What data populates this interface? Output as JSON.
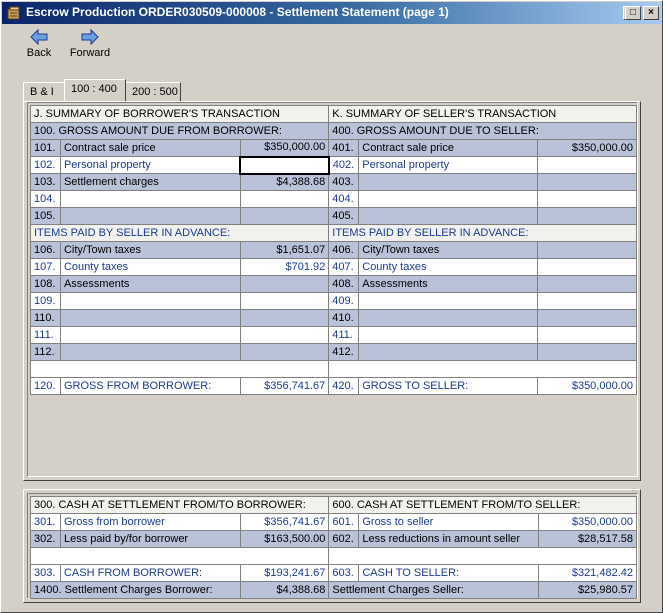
{
  "window": {
    "title": "Escrow Production ORDER030509-000008 - Settlement Statement (page 1)",
    "controls": {
      "minimize": "_",
      "maximize": "□",
      "close": "×"
    }
  },
  "toolbar": {
    "back_label": "Back",
    "forward_label": "Forward",
    "back_icon": "arrow-left-icon",
    "forward_icon": "arrow-right-icon"
  },
  "tabs": [
    {
      "label": "B & I",
      "active": false
    },
    {
      "label": "100 : 400",
      "active": true
    },
    {
      "label": "200 : 500",
      "active": false
    }
  ],
  "borrower": {
    "header": "J.   SUMMARY OF BORROWER'S TRANSACTION",
    "gross_header": "100.   GROSS AMOUNT DUE FROM BORROWER:",
    "rows_a": [
      {
        "num": "101.",
        "label": "Contract sale price",
        "amount": "$350,000.00"
      },
      {
        "num": "102.",
        "label": "Personal property",
        "amount": ""
      },
      {
        "num": "103.",
        "label": "Settlement charges",
        "amount": "$4,388.68"
      },
      {
        "num": "104.",
        "label": "",
        "amount": ""
      },
      {
        "num": "105.",
        "label": "",
        "amount": ""
      }
    ],
    "advance_header": "ITEMS PAID BY SELLER IN ADVANCE:",
    "rows_b": [
      {
        "num": "106.",
        "label": "City/Town taxes",
        "amount": "$1,651.07"
      },
      {
        "num": "107.",
        "label": "County taxes",
        "amount": "$701.92"
      },
      {
        "num": "108.",
        "label": "Assessments",
        "amount": ""
      },
      {
        "num": "109.",
        "label": "",
        "amount": ""
      },
      {
        "num": "110.",
        "label": "",
        "amount": ""
      },
      {
        "num": "111.",
        "label": "",
        "amount": ""
      },
      {
        "num": "112.",
        "label": "",
        "amount": ""
      }
    ],
    "gross_total": {
      "num": "120.",
      "label": "GROSS FROM BORROWER:",
      "amount": "$356,741.67"
    }
  },
  "seller": {
    "header": "K.   SUMMARY OF SELLER'S TRANSACTION",
    "gross_header": "400.   GROSS AMOUNT DUE TO SELLER:",
    "rows_a": [
      {
        "num": "401.",
        "label": "Contract sale price",
        "amount": "$350,000.00"
      },
      {
        "num": "402.",
        "label": "Personal property",
        "amount": ""
      },
      {
        "num": "403.",
        "label": "",
        "amount": ""
      },
      {
        "num": "404.",
        "label": "",
        "amount": ""
      },
      {
        "num": "405.",
        "label": "",
        "amount": ""
      }
    ],
    "advance_header": "ITEMS PAID BY SELLER IN ADVANCE:",
    "rows_b": [
      {
        "num": "406.",
        "label": "City/Town taxes",
        "amount": ""
      },
      {
        "num": "407.",
        "label": "County taxes",
        "amount": ""
      },
      {
        "num": "408.",
        "label": "Assessments",
        "amount": ""
      },
      {
        "num": "409.",
        "label": "",
        "amount": ""
      },
      {
        "num": "410.",
        "label": "",
        "amount": ""
      },
      {
        "num": "411.",
        "label": "",
        "amount": ""
      },
      {
        "num": "412.",
        "label": "",
        "amount": ""
      }
    ],
    "gross_total": {
      "num": "420.",
      "label": "GROSS TO SELLER:",
      "amount": "$350,000.00"
    }
  },
  "cash": {
    "borrower_header": "300.   CASH AT SETTLEMENT FROM/TO BORROWER:",
    "seller_header": "600.   CASH AT SETTLEMENT FROM/TO SELLER:",
    "borrower_rows": [
      {
        "num": "301.",
        "label": "Gross from borrower",
        "amount": "$356,741.67"
      },
      {
        "num": "302.",
        "label": "Less paid by/for borrower",
        "amount": "$163,500.00"
      }
    ],
    "seller_rows": [
      {
        "num": "601.",
        "label": "Gross to seller",
        "amount": "$350,000.00"
      },
      {
        "num": "602.",
        "label": "Less reductions in amount seller",
        "amount": "$28,517.58"
      }
    ],
    "borrower_total": {
      "num": "303.",
      "label": "CASH FROM BORROWER:",
      "amount": "$193,241.67"
    },
    "seller_total": {
      "num": "603.",
      "label": "CASH TO SELLER:",
      "amount": "$321,482.42"
    },
    "borrower_charges": {
      "label": "1400. Settlement Charges Borrower:",
      "amount": "$4,388.68"
    },
    "seller_charges": {
      "label": "Settlement Charges Seller:",
      "amount": "$25,980.57"
    }
  },
  "colors": {
    "shade_row": "#b9c2d9",
    "light_row": "#f1f1ee",
    "link_blue": "#1a3a8f",
    "title_bar": "#0a246a"
  }
}
